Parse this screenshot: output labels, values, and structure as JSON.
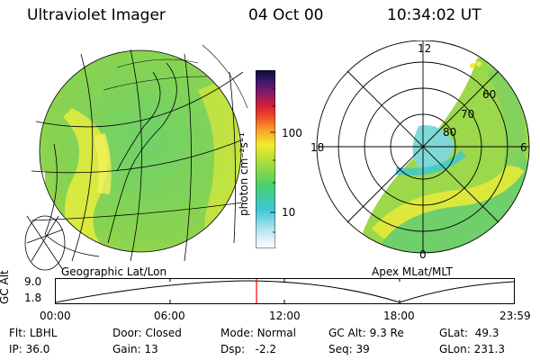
{
  "header": {
    "instrument": "Ultraviolet Imager",
    "date": "04 Oct 00",
    "time": "10:34:02 UT"
  },
  "colorbar": {
    "unit_label": "photon cm⁻²s⁻¹",
    "tick_100": "100",
    "tick_10": "10"
  },
  "left_panel": {
    "label": "Geographic Lat/Lon"
  },
  "right_panel": {
    "label": "Apex MLat/MLT",
    "mlt_12": "12",
    "mlt_18": "18",
    "mlt_6": "6",
    "mlt_0": "0",
    "lat_60": "60",
    "lat_70": "70",
    "lat_80": "80"
  },
  "timeline": {
    "ylabel": "GC Alt",
    "y_top": "9.0",
    "y_bottom": "1.8",
    "ticks": [
      "00:00",
      "06:00",
      "12:00",
      "18:00",
      "23:59"
    ],
    "current_marker_time": "10:34"
  },
  "info": {
    "flt_label": "Flt:",
    "flt_value": "LBHL",
    "ip_label": "IP:",
    "ip_value": "36.0",
    "door_label": "Door:",
    "door_value": "Closed",
    "gain_label": "Gain:",
    "gain_value": "13",
    "mode_label": "Mode:",
    "mode_value": "Normal",
    "dsp_label": "Dsp:",
    "dsp_value": "-2.2",
    "gcalt_label": "GC Alt:",
    "gcalt_value": "9.3 Re",
    "seq_label": "Seq:",
    "seq_value": "39",
    "glat_label": "GLat:",
    "glat_value": "49.3",
    "glon_label": "GLon:",
    "glon_value": "231.3"
  },
  "colors": {
    "marker": "#ff0000",
    "text": "#000000"
  }
}
